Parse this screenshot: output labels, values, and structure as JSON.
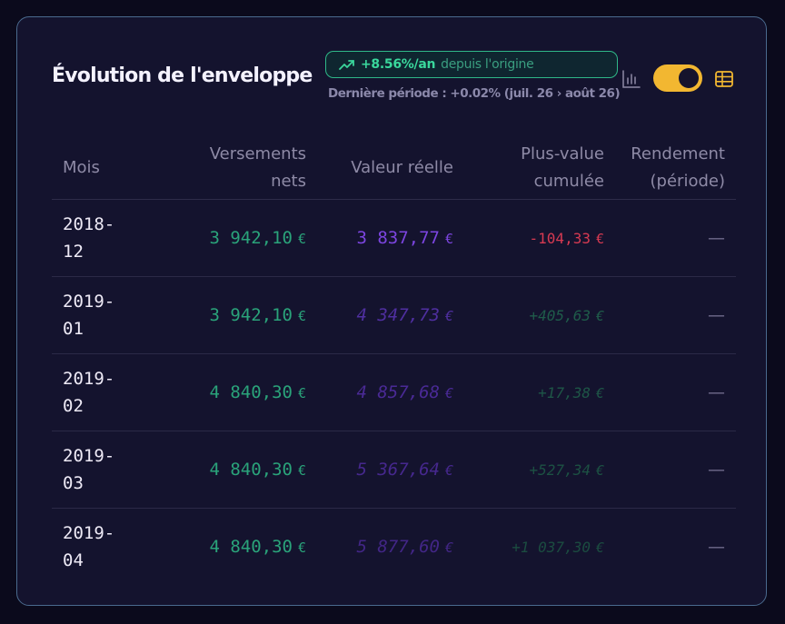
{
  "card": {
    "title": "Évolution de l'enveloppe",
    "badge": {
      "rate": "+8.56%/an",
      "since": "depuis l'origine"
    },
    "last_period": "Dernière période : +0.02% (juil. 26 › août 26)",
    "view_toggle": {
      "state": "on"
    }
  },
  "table": {
    "headers": {
      "month": "Mois",
      "net_deposits_1": "Versements",
      "net_deposits_2": "nets",
      "real_value": "Valeur réelle",
      "gain_1": "Plus-value",
      "gain_2": "cumulée",
      "yield_1": "Rendement",
      "yield_2": "(période)"
    },
    "rows": [
      {
        "month_year": "2018-",
        "month_num": "12",
        "net_deposits": "3 942,10",
        "real_value": "3 837,77",
        "gain": "-104,33",
        "yield": "—",
        "currency": "€"
      },
      {
        "month_year": "2019-",
        "month_num": "01",
        "net_deposits": "3 942,10",
        "real_value": "4 347,73",
        "gain": "+405,63",
        "yield": "—",
        "currency": "€"
      },
      {
        "month_year": "2019-",
        "month_num": "02",
        "net_deposits": "4 840,30",
        "real_value": "4 857,68",
        "gain": "+17,38",
        "yield": "—",
        "currency": "€"
      },
      {
        "month_year": "2019-",
        "month_num": "03",
        "net_deposits": "4 840,30",
        "real_value": "5 367,64",
        "gain": "+527,34",
        "yield": "—",
        "currency": "€"
      },
      {
        "month_year": "2019-",
        "month_num": "04",
        "net_deposits": "4 840,30",
        "real_value": "5 877,60",
        "gain": "+1 037,30",
        "yield": "—",
        "currency": "€"
      }
    ]
  },
  "colors": {
    "accent_yellow": "#f2b731",
    "deposit_green": "#2aa37a",
    "value_purple": "#7c45e0",
    "loss_red": "#d83a52",
    "badge_green": "#3ad79c"
  },
  "icons": [
    "trend-up-icon",
    "bar-chart-icon",
    "table-icon"
  ]
}
